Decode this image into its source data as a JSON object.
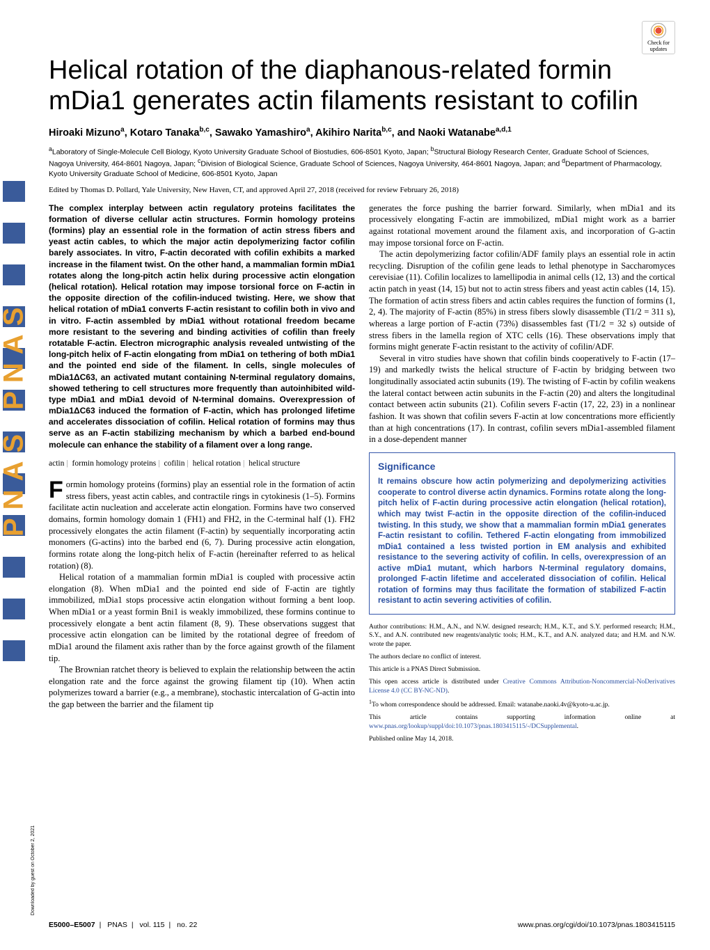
{
  "badge_text": "Check for updates",
  "title": "Helical rotation of the diaphanous-related formin mDia1 generates actin filaments resistant to cofilin",
  "authors_html": "Hiroaki Mizuno<sup>a</sup>, Kotaro Tanaka<sup>b,c</sup>, Sawako Yamashiro<sup>a</sup>, Akihiro Narita<sup>b,c</sup>, and Naoki Watanabe<sup>a,d,1</sup>",
  "affiliations_html": "<sup>a</sup>Laboratory of Single-Molecule Cell Biology, Kyoto University Graduate School of Biostudies, 606-8501 Kyoto, Japan; <sup>b</sup>Structural Biology Research Center, Graduate School of Sciences, Nagoya University, 464-8601 Nagoya, Japan; <sup>c</sup>Division of Biological Science, Graduate School of Sciences, Nagoya University, 464-8601 Nagoya, Japan; and <sup>d</sup>Department of Pharmacology, Kyoto University Graduate School of Medicine, 606-8501 Kyoto, Japan",
  "edited": "Edited by Thomas D. Pollard, Yale University, New Haven, CT, and approved April 27, 2018 (received for review February 26, 2018)",
  "abstract": "The complex interplay between actin regulatory proteins facilitates the formation of diverse cellular actin structures. Formin homology proteins (formins) play an essential role in the formation of actin stress fibers and yeast actin cables, to which the major actin depolymerizing factor cofilin barely associates. In vitro, F-actin decorated with cofilin exhibits a marked increase in the filament twist. On the other hand, a mammalian formin mDia1 rotates along the long-pitch actin helix during processive actin elongation (helical rotation). Helical rotation may impose torsional force on F-actin in the opposite direction of the cofilin-induced twisting. Here, we show that helical rotation of mDia1 converts F-actin resistant to cofilin both in vivo and in vitro. F-actin assembled by mDia1 without rotational freedom became more resistant to the severing and binding activities of cofilin than freely rotatable F-actin. Electron micrographic analysis revealed untwisting of the long-pitch helix of F-actin elongating from mDia1 on tethering of both mDia1 and the pointed end side of the filament. In cells, single molecules of mDia1ΔC63, an activated mutant containing N-terminal regulatory domains, showed tethering to cell structures more frequently than autoinhibited wild-type mDia1 and mDia1 devoid of N-terminal domains. Overexpression of mDia1ΔC63 induced the formation of F-actin, which has prolonged lifetime and accelerates dissociation of cofilin. Helical rotation of formins may thus serve as an F-actin stabilizing mechanism by which a barbed end-bound molecule can enhance the stability of a filament over a long range.",
  "keywords": [
    "actin",
    "formin homology proteins",
    "cofilin",
    "helical rotation",
    "helical structure"
  ],
  "col1": {
    "p1": "Formin homology proteins (formins) play an essential role in the formation of actin stress fibers, yeast actin cables, and contractile rings in cytokinesis (1–5). Formins facilitate actin nucleation and accelerate actin elongation. Formins have two conserved domains, formin homology domain 1 (FH1) and FH2, in the C-terminal half (1). FH2 processively elongates the actin filament (F-actin) by sequentially incorporating actin monomers (G-actins) into the barbed end (6, 7). During processive actin elongation, formins rotate along the long-pitch helix of F-actin (hereinafter referred to as helical rotation) (8).",
    "p2": "Helical rotation of a mammalian formin mDia1 is coupled with processive actin elongation (8). When mDia1 and the pointed end side of F-actin are tightly immobilized, mDia1 stops processive actin elongation without forming a bent loop. When mDia1 or a yeast formin Bni1 is weakly immobilized, these formins continue to processively elongate a bent actin filament (8, 9). These observations suggest that processive actin elongation can be limited by the rotational degree of freedom of mDia1 around the filament axis rather than by the force against growth of the filament tip.",
    "p3": "The Brownian ratchet theory is believed to explain the relationship between the actin elongation rate and the force against the growing filament tip (10). When actin polymerizes toward a barrier (e.g., a membrane), stochastic intercalation of G-actin into the gap between the barrier and the filament tip"
  },
  "col2": {
    "p1": "generates the force pushing the barrier forward. Similarly, when mDia1 and its processively elongating F-actin are immobilized, mDia1 might work as a barrier against rotational movement around the filament axis, and incorporation of G-actin may impose torsional force on F-actin.",
    "p2": "The actin depolymerizing factor cofilin/ADF family plays an essential role in actin recycling. Disruption of the cofilin gene leads to lethal phenotype in Saccharomyces cerevisiae (11). Cofilin localizes to lamellipodia in animal cells (12, 13) and the cortical actin patch in yeast (14, 15) but not to actin stress fibers and yeast actin cables (14, 15). The formation of actin stress fibers and actin cables requires the function of formins (1, 2, 4). The majority of F-actin (85%) in stress fibers slowly disassemble (T1/2 = 311 s), whereas a large portion of F-actin (73%) disassembles fast (T1/2 = 32 s) outside of stress fibers in the lamella region of XTC cells (16). These observations imply that formins might generate F-actin resistant to the activity of cofilin/ADF.",
    "p3": "Several in vitro studies have shown that cofilin binds cooperatively to F-actin (17–19) and markedly twists the helical structure of F-actin by bridging between two longitudinally associated actin subunits (19). The twisting of F-actin by cofilin weakens the lateral contact between actin subunits in the F-actin (20) and alters the longitudinal contact between actin subunits (21). Cofilin severs F-actin (17, 22, 23) in a nonlinear fashion. It was shown that cofilin severs F-actin at low concentrations more efficiently than at high concentrations (17). In contrast, cofilin severs mDia1-assembled filament in a dose-dependent manner"
  },
  "significance": {
    "heading": "Significance",
    "text": "It remains obscure how actin polymerizing and depolymerizing activities cooperate to control diverse actin dynamics. Formins rotate along the long-pitch helix of F-actin during processive actin elongation (helical rotation), which may twist F-actin in the opposite direction of the cofilin-induced twisting. In this study, we show that a mammalian formin mDia1 generates F-actin resistant to cofilin. Tethered F-actin elongating from immobilized mDia1 contained a less twisted portion in EM analysis and exhibited resistance to the severing activity of cofilin. In cells, overexpression of an active mDia1 mutant, which harbors N-terminal regulatory domains, prolonged F-actin lifetime and accelerated dissociation of cofilin. Helical rotation of formins may thus facilitate the formation of stabilized F-actin resistant to actin severing activities of cofilin."
  },
  "contributions": [
    "Author contributions: H.M., A.N., and N.W. designed research; H.M., K.T., and S.Y. performed research; H.M., S.Y., and A.N. contributed new reagents/analytic tools; H.M., K.T., and A.N. analyzed data; and H.M. and N.W. wrote the paper.",
    "The authors declare no conflict of interest.",
    "This article is a PNAS Direct Submission."
  ],
  "license_html": "This open access article is distributed under <a href='#'>Creative Commons Attribution-Noncommercial-NoDerivatives License 4.0 (CC BY-NC-ND)</a>.",
  "correspondence_html": "<sup>1</sup>To whom correspondence should be addressed. Email: watanabe.naoki.4v@kyoto-u.ac.jp.",
  "supporting_html": "This article contains supporting information online at <a href='#'>www.pnas.org/lookup/suppl/doi:10.1073/pnas.1803415115/-/DCSupplemental</a>.",
  "published": "Published online May 14, 2018.",
  "footer": {
    "pages": "E5000–E5007",
    "journal": "PNAS",
    "vol": "vol. 115",
    "issue": "no. 22",
    "doi": "www.pnas.org/cgi/doi/10.1073/pnas.1803415115"
  },
  "downloaded": "Downloaded by guest on October 2, 2021",
  "pnas_mark": "PNAS PNAS"
}
